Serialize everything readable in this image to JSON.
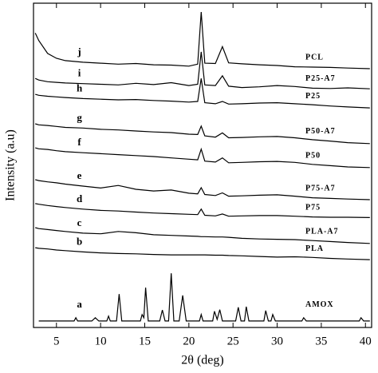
{
  "chart_data": {
    "type": "line",
    "x_label": "2θ (deg)",
    "y_label": "Intensity (a.u)",
    "color": "#000000",
    "xlim": [
      2.4,
      40.7
    ],
    "xticks": [
      5,
      10,
      15,
      20,
      25,
      30,
      35,
      40
    ],
    "ylim": [
      0,
      100
    ],
    "series": [
      {
        "label": "j",
        "name": "PCL",
        "x": [
          2.6,
          3,
          4,
          5,
          6,
          8,
          10,
          12,
          14,
          16,
          18,
          20,
          21,
          21.4,
          21.8,
          23,
          23.8,
          24.5,
          26,
          28,
          30,
          32,
          34,
          36,
          38,
          40.5
        ],
        "values": [
          90.8,
          88.5,
          84.5,
          83,
          82.3,
          81.8,
          81.5,
          81.2,
          81.4,
          81,
          80.9,
          80.6,
          81.2,
          97.3,
          81.5,
          81.4,
          86.6,
          81.6,
          81.3,
          81,
          80.8,
          80.4,
          80.3,
          80.2,
          80,
          79.8
        ]
      },
      {
        "label": "i",
        "name": "P25-A7",
        "x": [
          2.6,
          3,
          4,
          5,
          6,
          8,
          10,
          12,
          14,
          16,
          18,
          20,
          21,
          21.4,
          21.8,
          23,
          23.8,
          24.5,
          26,
          28,
          30,
          32,
          34,
          36,
          38,
          40.5
        ],
        "values": [
          76.8,
          76.3,
          75.8,
          75.6,
          75.4,
          75.2,
          75,
          74.8,
          75.3,
          74.9,
          75.5,
          74.6,
          75,
          85,
          74.8,
          74.6,
          77.6,
          74.4,
          74,
          74.2,
          74.6,
          74.3,
          73.8,
          73.7,
          73.9,
          73.6
        ]
      },
      {
        "label": "h",
        "name": "P25",
        "x": [
          2.6,
          3,
          4,
          5,
          6,
          8,
          10,
          12,
          14,
          16,
          18,
          20,
          21,
          21.4,
          21.8,
          23,
          23.8,
          24.5,
          26,
          28,
          30,
          32,
          34,
          36,
          38,
          40.5
        ],
        "values": [
          71.9,
          71.6,
          71.3,
          71.1,
          70.9,
          70.6,
          70.4,
          70.2,
          70.3,
          70,
          69.8,
          69.5,
          69.7,
          76.8,
          69.3,
          69,
          69.7,
          68.9,
          69,
          69.2,
          69.3,
          69,
          68.7,
          68.3,
          68,
          67.7
        ]
      },
      {
        "label": "g",
        "name": "P50-A7",
        "x": [
          2.6,
          3,
          4,
          5,
          6,
          8,
          10,
          12,
          14,
          16,
          18,
          20,
          21,
          21.4,
          21.8,
          23,
          23.8,
          24.5,
          26,
          28,
          30,
          32,
          34,
          36,
          38,
          40.5
        ],
        "values": [
          62.8,
          62.5,
          62.3,
          62,
          61.7,
          61.5,
          61.1,
          60.9,
          60.6,
          60.3,
          60.1,
          59.6,
          59.5,
          62.1,
          59.1,
          58.7,
          60,
          58.5,
          58.6,
          58.8,
          58.9,
          58.5,
          57.9,
          57.5,
          57,
          56.7
        ]
      },
      {
        "label": "f",
        "name": "P50",
        "x": [
          2.6,
          3,
          4,
          5,
          6,
          8,
          10,
          12,
          14,
          16,
          18,
          20,
          21,
          21.4,
          21.8,
          23,
          23.8,
          24.5,
          26,
          28,
          30,
          32,
          34,
          36,
          38,
          40.5
        ],
        "values": [
          55.4,
          55.1,
          54.9,
          54.5,
          54.2,
          53.9,
          53.6,
          53.3,
          53,
          52.7,
          52.3,
          51.9,
          51.7,
          55,
          51.3,
          51,
          52.3,
          50.8,
          50.9,
          51.1,
          51.2,
          50.9,
          50.3,
          49.9,
          49.5,
          49.3
        ]
      },
      {
        "label": "e",
        "name": "P75-A7",
        "x": [
          2.6,
          3,
          4,
          5,
          6,
          8,
          10,
          12,
          14,
          16,
          18,
          20,
          21,
          21.4,
          21.8,
          23,
          23.8,
          24.5,
          26,
          28,
          30,
          32,
          34,
          36,
          38,
          40.5
        ],
        "values": [
          45.6,
          45.3,
          44.9,
          44.6,
          44.2,
          43.6,
          43,
          43.8,
          42.6,
          42.1,
          42.4,
          41.4,
          41.2,
          43.1,
          41,
          40.7,
          41.5,
          40.5,
          40.6,
          40.8,
          40.9,
          40.5,
          40,
          39.8,
          39.6,
          39.4
        ]
      },
      {
        "label": "d",
        "name": "P75",
        "x": [
          2.6,
          3,
          4,
          5,
          6,
          8,
          10,
          12,
          14,
          16,
          18,
          20,
          21,
          21.4,
          21.8,
          23,
          23.8,
          24.5,
          26,
          28,
          30,
          32,
          34,
          36,
          38,
          40.5
        ],
        "values": [
          38.2,
          38,
          37.6,
          37.3,
          37,
          36.5,
          36.1,
          35.9,
          35.6,
          35.3,
          35.1,
          34.9,
          34.8,
          36.5,
          34.6,
          34.4,
          35,
          34.3,
          34.4,
          34.5,
          34.5,
          34.3,
          34.1,
          34,
          34,
          33.9
        ]
      },
      {
        "label": "c",
        "name": "PLA-A7",
        "x": [
          2.6,
          3,
          4,
          5,
          6,
          8,
          10,
          12,
          14,
          16,
          18,
          20,
          21,
          21.4,
          21.8,
          23,
          23.8,
          24.5,
          26,
          28,
          30,
          32,
          34,
          36,
          38,
          40.5
        ],
        "values": [
          30.8,
          30.5,
          30.2,
          29.9,
          29.6,
          29.1,
          28.9,
          29.6,
          29.2,
          28.6,
          28.4,
          28.2,
          28.1,
          28,
          28,
          27.9,
          27.9,
          27.8,
          27.5,
          27.3,
          27.2,
          27.1,
          26.8,
          26.5,
          26.2,
          25.9
        ]
      },
      {
        "label": "b",
        "name": "PLA",
        "x": [
          2.6,
          3,
          4,
          5,
          6,
          8,
          10,
          12,
          14,
          16,
          18,
          20,
          21,
          21.4,
          21.8,
          23,
          23.8,
          24.5,
          26,
          28,
          30,
          32,
          34,
          36,
          38,
          40.5
        ],
        "values": [
          24.6,
          24.4,
          24.2,
          23.9,
          23.7,
          23.3,
          23,
          22.8,
          22.7,
          22.5,
          22.4,
          22.4,
          22.4,
          22.4,
          22.4,
          22.3,
          22.3,
          22.2,
          22.1,
          21.9,
          21.7,
          21.8,
          21.6,
          21.3,
          21.1,
          20.9
        ]
      },
      {
        "label": "a",
        "name": "AMOX",
        "x": [
          3,
          7,
          7.2,
          7.4,
          9,
          9.4,
          9.8,
          10.7,
          10.9,
          11.1,
          11.8,
          12.1,
          12.4,
          14.5,
          14.7,
          14.9,
          15.1,
          15.4,
          16.7,
          17,
          17.3,
          17.7,
          18,
          18.3,
          18.9,
          19.3,
          19.7,
          20.1,
          21.2,
          21.4,
          21.6,
          22.7,
          22.9,
          23.2,
          23.5,
          23.8,
          25.3,
          25.6,
          25.9,
          26.3,
          26.5,
          26.8,
          28.5,
          28.7,
          29,
          29.3,
          29.5,
          29.8,
          32.8,
          33,
          33.3,
          35,
          39.3,
          39.5,
          39.8,
          40.5
        ],
        "values": [
          2,
          2,
          3,
          2,
          2,
          3,
          2,
          2,
          3.5,
          2,
          2,
          10.3,
          2,
          2,
          4,
          3,
          12.3,
          2,
          2,
          5.4,
          2,
          2,
          16.7,
          2,
          2,
          9.9,
          2,
          2,
          2,
          4,
          2,
          2,
          5,
          2.5,
          5.5,
          2,
          2,
          6.2,
          2,
          2,
          6.4,
          2,
          2,
          5.2,
          2,
          2,
          4,
          2,
          2,
          3,
          2,
          2,
          2,
          3,
          2,
          2
        ]
      }
    ]
  }
}
